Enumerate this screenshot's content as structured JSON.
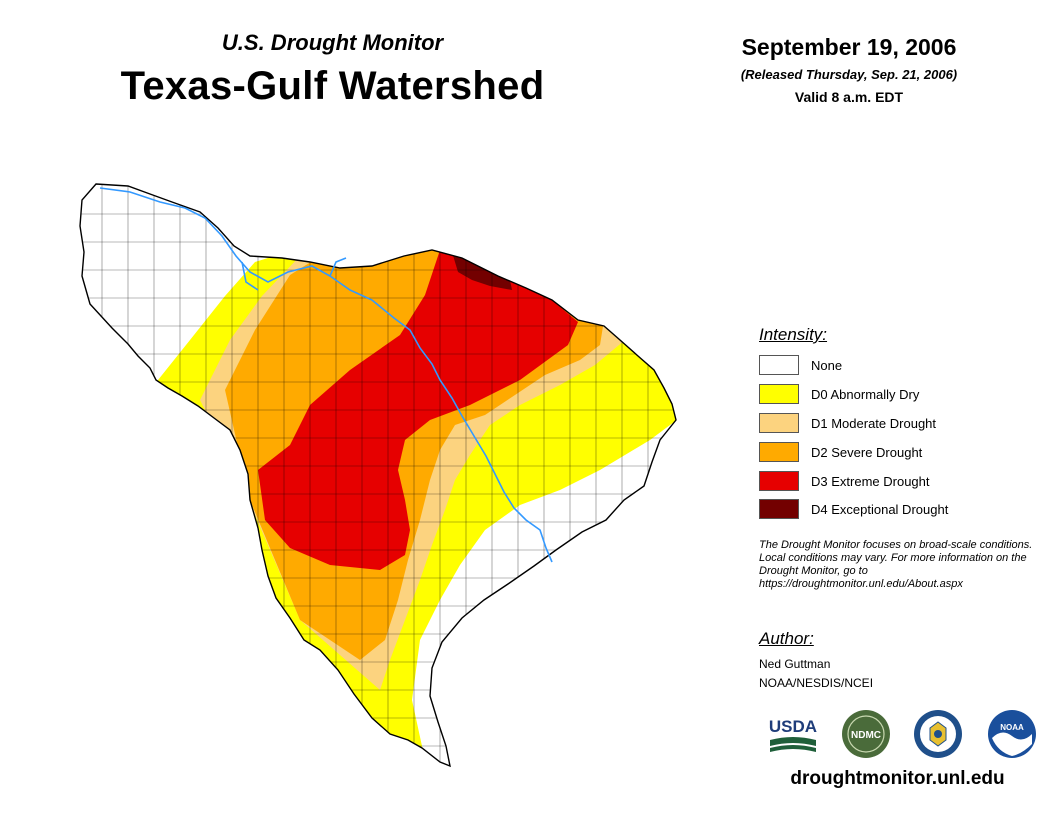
{
  "header": {
    "subtitle": "U.S. Drought Monitor",
    "title": "Texas-Gulf Watershed",
    "date": "September 19, 2006",
    "released": "(Released Thursday, Sep. 21, 2006)",
    "valid": "Valid 8 a.m. EDT"
  },
  "legend": {
    "heading": "Intensity:",
    "items": [
      {
        "label": "None",
        "color": "#ffffff"
      },
      {
        "label": "D0 Abnormally Dry",
        "color": "#ffff00"
      },
      {
        "label": "D1 Moderate Drought",
        "color": "#fcd37f"
      },
      {
        "label": "D2 Severe Drought",
        "color": "#ffaa00"
      },
      {
        "label": "D3 Extreme Drought",
        "color": "#e60000"
      },
      {
        "label": "D4 Exceptional Drought",
        "color": "#730000"
      }
    ]
  },
  "note": "The Drought Monitor focuses on broad-scale conditions. Local conditions may vary. For more information on the Drought Monitor, go to https://droughtmonitor.unl.edu/About.aspx",
  "author": {
    "heading": "Author:",
    "name": "Ned Guttman",
    "org": "NOAA/NESDIS/NCEI"
  },
  "logos": {
    "usda": "USDA",
    "ndmc": "NDMC",
    "noaa": "NOAA"
  },
  "footer": {
    "url": "droughtmonitor.unl.edu"
  },
  "map": {
    "river_color": "#3399ff",
    "boundary_color": "#000000"
  }
}
